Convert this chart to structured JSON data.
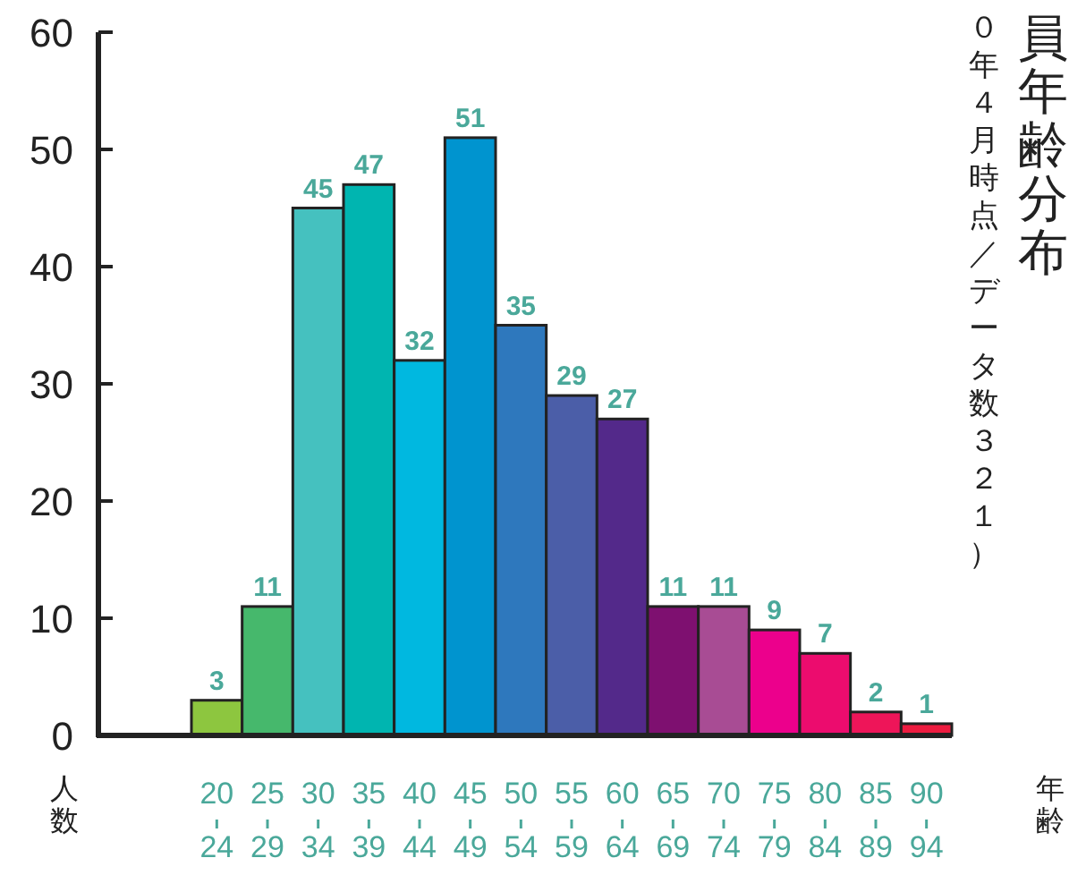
{
  "chart_data": {
    "type": "bar",
    "title": "員年齢分布",
    "subtitle": "０年４月時点／データ数３２１）",
    "xlabel": "年齢",
    "ylabel": "人数",
    "categories": [
      "20\n24",
      "25\n29",
      "30\n34",
      "35\n39",
      "40\n44",
      "45\n49",
      "50\n54",
      "55\n59",
      "60\n64",
      "65\n69",
      "70\n74",
      "75\n79",
      "80\n84",
      "85\n89",
      "90\n94"
    ],
    "values": [
      3,
      11,
      45,
      47,
      32,
      51,
      35,
      29,
      27,
      11,
      11,
      9,
      7,
      2,
      1
    ],
    "colors": [
      "#8dc63f",
      "#46b86c",
      "#45c1bf",
      "#00b5b0",
      "#00b8e0",
      "#0094cf",
      "#2e78bd",
      "#4b5ea8",
      "#53298a",
      "#7e1070",
      "#a84c94",
      "#ec008c",
      "#ec0c6e",
      "#ee1559",
      "#ed1c40"
    ],
    "ylim": [
      0,
      60
    ],
    "yticks": [
      0,
      10,
      20,
      30,
      40,
      50,
      60
    ],
    "data_labels": true
  }
}
